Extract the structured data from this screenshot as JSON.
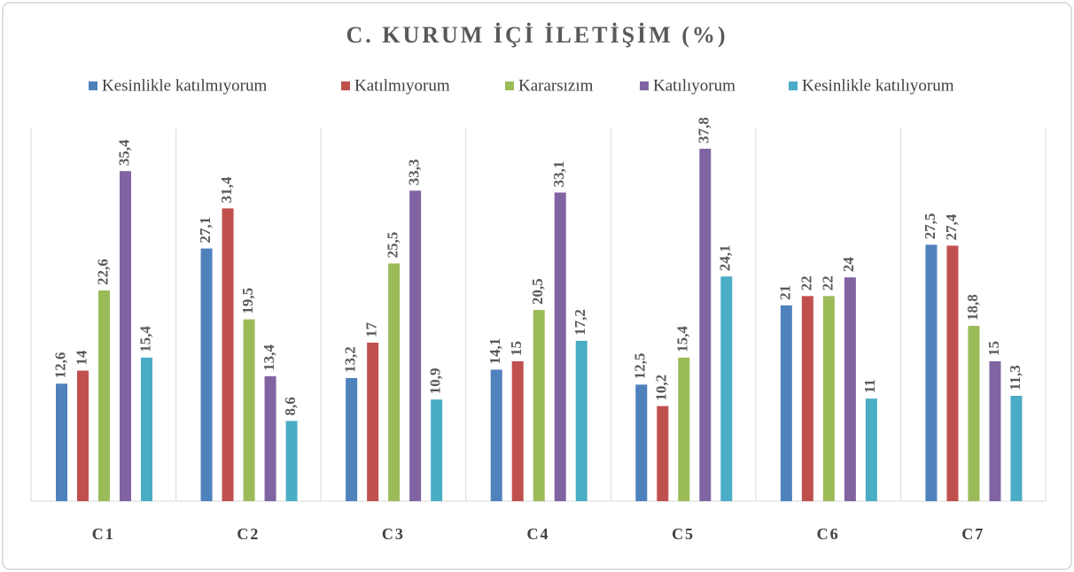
{
  "chart_data": {
    "type": "bar",
    "title": "C. KURUM İÇİ İLETİŞİM (%)",
    "categories": [
      "C1",
      "C2",
      "C3",
      "C4",
      "C5",
      "C6",
      "C7"
    ],
    "series": [
      {
        "name": "Kesinlikle katılmıyorum",
        "color": "#4f81bd",
        "values": [
          12.6,
          27.1,
          13.2,
          14.1,
          12.5,
          21,
          27.5
        ],
        "value_labels": [
          "12,6",
          "27,1",
          "13,2",
          "14,1",
          "12,5",
          "21",
          "27,5"
        ]
      },
      {
        "name": "Katılmıyorum",
        "color": "#c0504d",
        "values": [
          14,
          31.4,
          17,
          15,
          10.2,
          22,
          27.4
        ],
        "value_labels": [
          "14",
          "31,4",
          "17",
          "15",
          "10,2",
          "22",
          "27,4"
        ]
      },
      {
        "name": "Kararsızım",
        "color": "#9bbb59",
        "values": [
          22.6,
          19.5,
          25.5,
          20.5,
          15.4,
          22,
          18.8
        ],
        "value_labels": [
          "22,6",
          "19,5",
          "25,5",
          "20,5",
          "15,4",
          "22",
          "18,8"
        ]
      },
      {
        "name": "Katılıyorum",
        "color": "#8064a2",
        "values": [
          35.4,
          13.4,
          33.3,
          33.1,
          37.8,
          24,
          15
        ],
        "value_labels": [
          "35,4",
          "13,4",
          "33,3",
          "33,1",
          "37,8",
          "24",
          "15"
        ]
      },
      {
        "name": "Kesinlikle katılıyorum",
        "color": "#4bacc6",
        "values": [
          15.4,
          8.6,
          10.9,
          17.2,
          24.1,
          11,
          11.3
        ],
        "value_labels": [
          "15,4",
          "8,6",
          "10,9",
          "17,2",
          "24,1",
          "11",
          "11,3"
        ]
      }
    ],
    "legend": "top"
  }
}
